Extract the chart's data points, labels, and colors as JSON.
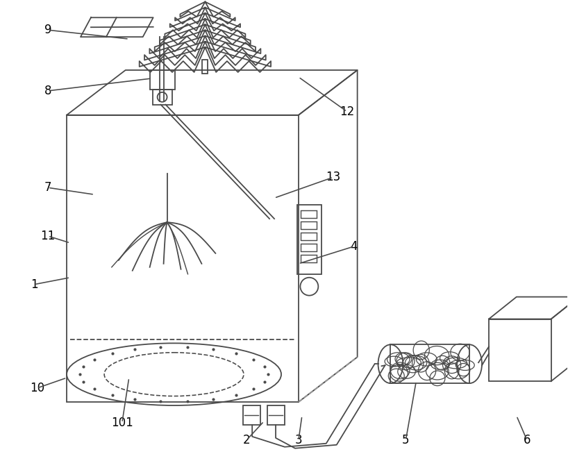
{
  "bg_color": "#ffffff",
  "line_color": "#4a4a4a",
  "line_width": 1.3,
  "label_fontsize": 12
}
